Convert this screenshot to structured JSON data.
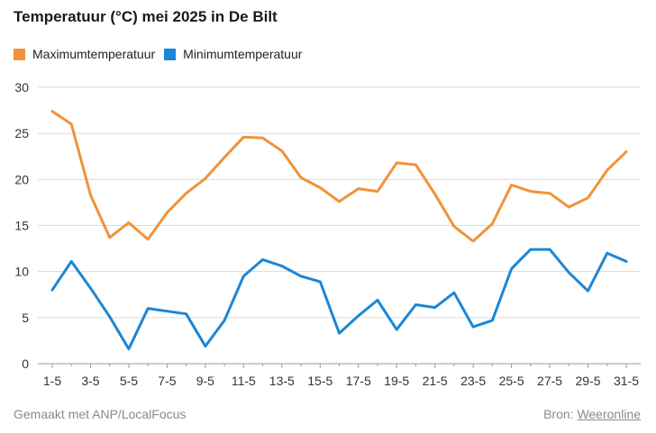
{
  "chart_data": {
    "type": "line",
    "title": "Temperatuur (°C) mei 2025 in De Bilt",
    "xlabel": "",
    "ylabel": "",
    "ylim": [
      0,
      30
    ],
    "yticks": [
      0,
      5,
      10,
      15,
      20,
      25,
      30
    ],
    "grid": true,
    "legend_placement": "top-left",
    "x": [
      "1-5",
      "2-5",
      "3-5",
      "4-5",
      "5-5",
      "6-5",
      "7-5",
      "8-5",
      "9-5",
      "10-5",
      "11-5",
      "12-5",
      "13-5",
      "14-5",
      "15-5",
      "16-5",
      "17-5",
      "18-5",
      "19-5",
      "20-5",
      "21-5",
      "22-5",
      "23-5",
      "24-5",
      "25-5",
      "26-5",
      "27-5",
      "28-5",
      "29-5",
      "30-5",
      "31-5"
    ],
    "xtick_labels": [
      "1-5",
      "3-5",
      "5-5",
      "7-5",
      "9-5",
      "11-5",
      "13-5",
      "15-5",
      "17-5",
      "19-5",
      "21-5",
      "23-5",
      "25-5",
      "27-5",
      "29-5",
      "31-5"
    ],
    "series": [
      {
        "name": "Maximumtemperatuur",
        "color": "#f0933a",
        "values": [
          27.4,
          26.0,
          18.3,
          13.7,
          15.3,
          13.5,
          16.4,
          18.5,
          20.1,
          22.4,
          24.6,
          24.5,
          23.1,
          20.2,
          19.1,
          17.6,
          19.0,
          18.7,
          21.8,
          21.6,
          18.4,
          14.9,
          13.3,
          15.2,
          19.4,
          18.7,
          18.5,
          17.0,
          18.0,
          21.0,
          23.0
        ]
      },
      {
        "name": "Minimumtemperatuur",
        "color": "#1b86d6",
        "values": [
          8.0,
          11.1,
          8.2,
          5.1,
          1.6,
          6.0,
          5.7,
          5.4,
          1.9,
          4.7,
          9.5,
          11.3,
          10.6,
          9.5,
          8.9,
          3.3,
          5.2,
          6.9,
          3.7,
          6.4,
          6.1,
          7.7,
          4.0,
          4.7,
          10.3,
          12.4,
          12.4,
          9.9,
          7.9,
          12.0,
          11.1
        ]
      }
    ]
  },
  "footer": {
    "credit": "Gemaakt met ANP/LocalFocus",
    "source_label": "Bron:",
    "source_link": "Weeronline"
  }
}
